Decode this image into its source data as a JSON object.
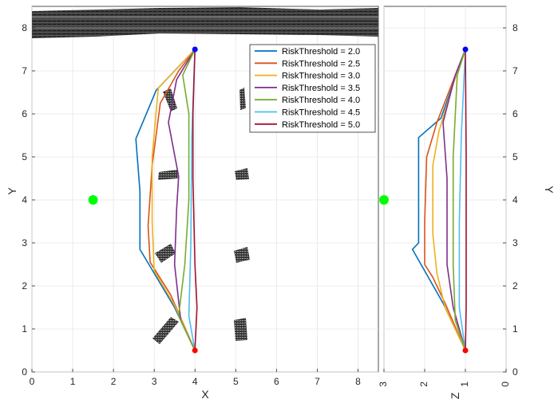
{
  "chart_data": [
    {
      "type": "line",
      "title": "",
      "xlabel": "X",
      "ylabel": "Y",
      "xlim": [
        0,
        8.5
      ],
      "ylim": [
        0,
        8.5
      ],
      "xticks": [
        "0",
        "1",
        "2",
        "3",
        "4",
        "5",
        "6",
        "7",
        "8"
      ],
      "yticks": [
        "0",
        "1",
        "2",
        "3",
        "4",
        "5",
        "6",
        "7",
        "8"
      ],
      "grid": true,
      "legend_position": "top-right",
      "start": {
        "x": 4.0,
        "y": 0.5,
        "color": "#ff0000"
      },
      "goal": {
        "x": 4.0,
        "y": 7.5,
        "color": "#0000ff"
      },
      "viewpoint": {
        "x": 1.5,
        "y": 4.0,
        "color": "#00ff00"
      },
      "series": [
        {
          "name": "RiskThreshold = 2.0",
          "color": "#0072BD",
          "points": [
            [
              4.0,
              0.5
            ],
            [
              3.5,
              1.5
            ],
            [
              2.65,
              2.85
            ],
            [
              2.65,
              4.2
            ],
            [
              2.55,
              5.42
            ],
            [
              3.05,
              6.55
            ],
            [
              4.0,
              7.5
            ]
          ]
        },
        {
          "name": "RiskThreshold = 2.5",
          "color": "#D95319",
          "points": [
            [
              4.0,
              0.5
            ],
            [
              3.4,
              1.8
            ],
            [
              2.9,
              2.55
            ],
            [
              2.85,
              3.4
            ],
            [
              2.95,
              4.8
            ],
            [
              3.15,
              6.25
            ],
            [
              3.6,
              7.0
            ],
            [
              4.0,
              7.5
            ]
          ]
        },
        {
          "name": "RiskThreshold = 3.0",
          "color": "#EDB120",
          "points": [
            [
              4.0,
              0.5
            ],
            [
              3.5,
              1.55
            ],
            [
              3.0,
              2.35
            ],
            [
              2.95,
              3.5
            ],
            [
              2.95,
              5.0
            ],
            [
              3.1,
              6.6
            ],
            [
              4.0,
              7.5
            ]
          ]
        },
        {
          "name": "RiskThreshold = 3.5",
          "color": "#7E2F8E",
          "points": [
            [
              4.0,
              0.5
            ],
            [
              3.65,
              1.2
            ],
            [
              3.5,
              2.5
            ],
            [
              3.55,
              3.8
            ],
            [
              3.6,
              4.55
            ],
            [
              3.35,
              5.8
            ],
            [
              3.55,
              6.8
            ],
            [
              4.0,
              7.5
            ]
          ]
        },
        {
          "name": "RiskThreshold = 4.0",
          "color": "#77AC30",
          "points": [
            [
              4.0,
              0.5
            ],
            [
              3.6,
              1.3
            ],
            [
              3.75,
              2.5
            ],
            [
              3.85,
              4.0
            ],
            [
              3.85,
              6.0
            ],
            [
              3.7,
              6.9
            ],
            [
              4.0,
              7.5
            ]
          ]
        },
        {
          "name": "RiskThreshold = 4.5",
          "color": "#4DBEEE",
          "points": [
            [
              4.0,
              0.5
            ],
            [
              3.85,
              1.3
            ],
            [
              3.9,
              3.0
            ],
            [
              3.92,
              5.45
            ],
            [
              4.0,
              7.5
            ]
          ]
        },
        {
          "name": "RiskThreshold = 5.0",
          "color": "#A2142F",
          "points": [
            [
              4.0,
              0.5
            ],
            [
              4.05,
              1.5
            ],
            [
              4.0,
              2.5
            ],
            [
              3.95,
              4.5
            ],
            [
              3.95,
              6.0
            ],
            [
              4.0,
              7.5
            ]
          ]
        }
      ]
    },
    {
      "type": "line",
      "title": "",
      "xlabel": "Z",
      "ylabel": "Y",
      "xlim": [
        3,
        0
      ],
      "ylim": [
        0,
        8.5
      ],
      "xticks": [
        "3",
        "2",
        "1",
        "0"
      ],
      "yticks": [
        "0",
        "1",
        "2",
        "3",
        "4",
        "5",
        "6",
        "7",
        "8"
      ],
      "grid": true,
      "start": {
        "z": 1.0,
        "y": 0.5,
        "color": "#ff0000"
      },
      "goal": {
        "z": 1.0,
        "y": 7.5,
        "color": "#0000ff"
      },
      "viewpoint": {
        "z": 3.0,
        "y": 4.0,
        "color": "#00ff00"
      },
      "series": [
        {
          "name": "RiskThreshold = 2.0",
          "color": "#0072BD",
          "points": [
            [
              1.0,
              0.5
            ],
            [
              1.55,
              1.6
            ],
            [
              2.3,
              2.85
            ],
            [
              2.15,
              3.0
            ],
            [
              2.15,
              5.45
            ],
            [
              1.6,
              5.9
            ],
            [
              1.0,
              7.5
            ]
          ]
        },
        {
          "name": "RiskThreshold = 2.5",
          "color": "#D95319",
          "points": [
            [
              1.0,
              0.5
            ],
            [
              1.5,
              1.6
            ],
            [
              1.8,
              2.2
            ],
            [
              2.0,
              2.5
            ],
            [
              2.0,
              3.5
            ],
            [
              1.95,
              5.0
            ],
            [
              1.7,
              5.8
            ],
            [
              1.0,
              7.5
            ]
          ]
        },
        {
          "name": "RiskThreshold = 3.0",
          "color": "#EDB120",
          "points": [
            [
              1.0,
              0.5
            ],
            [
              1.5,
              1.5
            ],
            [
              1.7,
              2.3
            ],
            [
              1.8,
              3.2
            ],
            [
              1.8,
              4.8
            ],
            [
              1.65,
              5.6
            ],
            [
              1.2,
              7.0
            ],
            [
              1.0,
              7.5
            ]
          ]
        },
        {
          "name": "RiskThreshold = 3.5",
          "color": "#7E2F8E",
          "points": [
            [
              1.0,
              0.5
            ],
            [
              1.3,
              1.5
            ],
            [
              1.45,
              2.5
            ],
            [
              1.45,
              4.5
            ],
            [
              1.55,
              5.8
            ],
            [
              1.25,
              6.9
            ],
            [
              1.0,
              7.5
            ]
          ]
        },
        {
          "name": "RiskThreshold = 4.0",
          "color": "#77AC30",
          "points": [
            [
              1.0,
              0.5
            ],
            [
              1.25,
              1.2
            ],
            [
              1.3,
              2.5
            ],
            [
              1.3,
              5.0
            ],
            [
              1.2,
              6.9
            ],
            [
              1.0,
              7.5
            ]
          ]
        },
        {
          "name": "RiskThreshold = 4.5",
          "color": "#4DBEEE",
          "points": [
            [
              1.0,
              0.5
            ],
            [
              1.15,
              1.5
            ],
            [
              1.15,
              3.5
            ],
            [
              1.1,
              5.5
            ],
            [
              1.0,
              7.5
            ]
          ]
        },
        {
          "name": "RiskThreshold = 5.0",
          "color": "#A2142F",
          "points": [
            [
              1.0,
              0.5
            ],
            [
              0.98,
              1.5
            ],
            [
              0.98,
              5.0
            ],
            [
              1.0,
              7.5
            ]
          ]
        }
      ]
    }
  ]
}
